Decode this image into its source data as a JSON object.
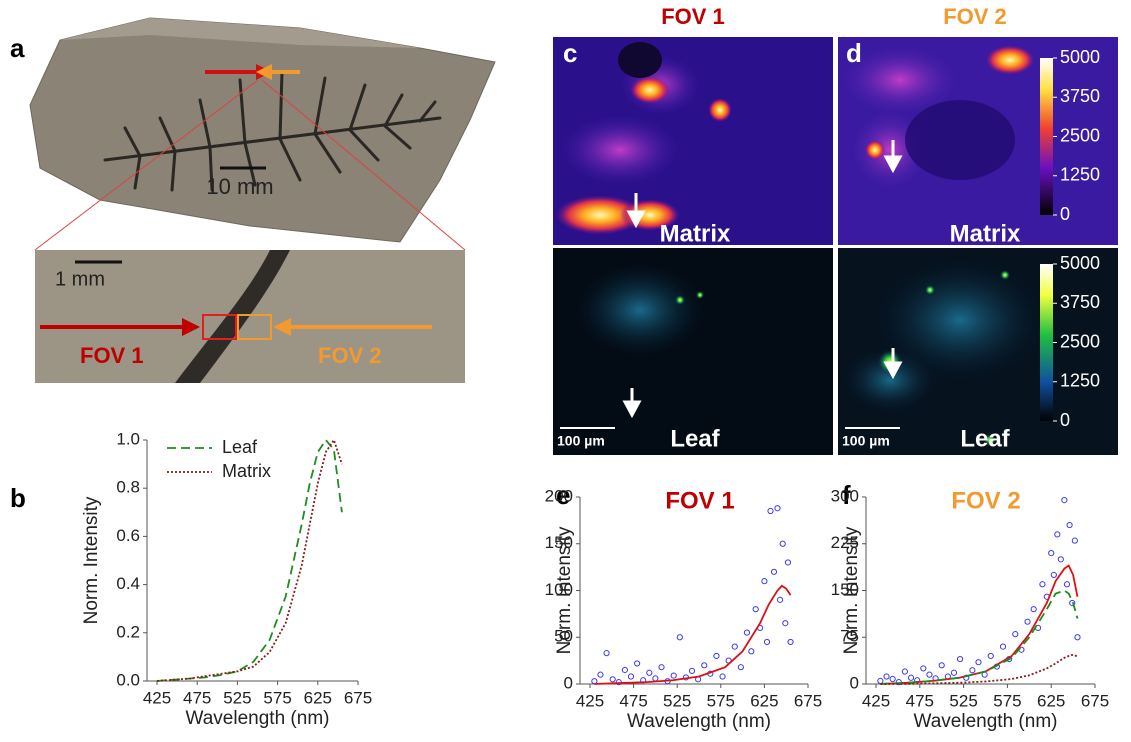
{
  "figure": {
    "panel_labels": [
      "a",
      "b",
      "c",
      "d",
      "e",
      "f"
    ]
  },
  "photo": {
    "scale_main": "10 mm",
    "scale_inset": "1 mm",
    "fov1": "FOV 1",
    "fov2": "FOV 2"
  },
  "maps": {
    "titles": [
      "FOV 1",
      "FOV 2"
    ],
    "row_labels": [
      "Matrix",
      "Leaf"
    ],
    "scale_bar": "100 µm",
    "colorbars": [
      {
        "ticks": [
          0,
          1250,
          2500,
          3750,
          5000
        ]
      },
      {
        "ticks": [
          0,
          1250,
          2500,
          3750,
          5000
        ]
      }
    ]
  },
  "chart_data": [
    {
      "type": "line",
      "xlabel": "Wavelength (nm)",
      "ylabel": "Norm. Intensity",
      "x": [
        425,
        445,
        465,
        485,
        505,
        525,
        545,
        565,
        585,
        605,
        615,
        625,
        635,
        645,
        655
      ],
      "xlim": [
        425,
        675
      ],
      "xticks": [
        425,
        475,
        525,
        575,
        625,
        675
      ],
      "ylim": [
        0,
        1
      ],
      "yticks": [
        {
          "value": 0,
          "label": "0.0"
        },
        0.2,
        0.4,
        0.6,
        0.8,
        {
          "value": 1,
          "label": "1.0"
        }
      ],
      "legend": "upper left",
      "series": [
        {
          "name": "Leaf",
          "color": "#1e8c1e",
          "dash": "dashed",
          "values": [
            0,
            0.005,
            0.01,
            0.015,
            0.025,
            0.04,
            0.08,
            0.17,
            0.35,
            0.65,
            0.82,
            0.95,
            1.0,
            0.96,
            0.7
          ]
        },
        {
          "name": "Matrix",
          "color": "#8b1a1a",
          "dash": "dotted",
          "values": [
            0,
            0.005,
            0.01,
            0.02,
            0.03,
            0.04,
            0.06,
            0.12,
            0.24,
            0.48,
            0.65,
            0.82,
            0.95,
            1.0,
            0.9
          ]
        }
      ]
    },
    {
      "type": "scatter",
      "title": "FOV 1",
      "title_color": "#c00000",
      "xlabel": "Wavelength (nm)",
      "ylabel": "Norm. Intensity",
      "xlim": [
        425,
        675
      ],
      "xticks": [
        425,
        475,
        525,
        575,
        625,
        675
      ],
      "ylim": [
        0,
        200
      ],
      "yticks": [
        0,
        50,
        100,
        150,
        200
      ],
      "series": [
        {
          "mode": "markers",
          "color": "#3b3bf0",
          "x": [
            430,
            437,
            444,
            451,
            458,
            465,
            472,
            479,
            486,
            493,
            500,
            507,
            514,
            521,
            528,
            535,
            542,
            549,
            556,
            563,
            570,
            577,
            584,
            591,
            598,
            605,
            610,
            615,
            620,
            625,
            628,
            632,
            636,
            640,
            643,
            646,
            649,
            652,
            655
          ],
          "values": [
            3,
            10,
            33,
            5,
            2,
            15,
            8,
            22,
            4,
            12,
            6,
            18,
            3,
            9,
            50,
            7,
            14,
            5,
            20,
            11,
            30,
            8,
            25,
            40,
            18,
            55,
            35,
            80,
            60,
            110,
            45,
            185,
            120,
            188,
            90,
            150,
            65,
            130,
            45
          ]
        },
        {
          "mode": "lines",
          "color": "#e01010",
          "dash": "solid",
          "x": [
            430,
            460,
            490,
            520,
            550,
            580,
            600,
            620,
            630,
            640,
            645,
            650,
            655
          ],
          "values": [
            0,
            1,
            2,
            4,
            8,
            18,
            35,
            65,
            85,
            100,
            105,
            102,
            95
          ]
        }
      ]
    },
    {
      "type": "scatter",
      "title": "FOV 2",
      "title_color": "#f39a2e",
      "xlabel": "Wavelength (nm)",
      "ylabel": "Norm. Intensity",
      "xlim": [
        425,
        675
      ],
      "xticks": [
        425,
        475,
        525,
        575,
        625,
        675
      ],
      "ylim": [
        0,
        300
      ],
      "yticks": [
        0,
        75,
        150,
        225,
        300
      ],
      "series": [
        {
          "mode": "markers",
          "color": "#3b3bf0",
          "x": [
            430,
            437,
            444,
            451,
            458,
            465,
            472,
            479,
            486,
            493,
            500,
            507,
            514,
            521,
            528,
            535,
            542,
            549,
            556,
            563,
            570,
            577,
            584,
            591,
            598,
            605,
            610,
            615,
            620,
            625,
            628,
            632,
            636,
            640,
            643,
            646,
            649,
            652,
            655
          ],
          "values": [
            5,
            12,
            8,
            3,
            20,
            10,
            6,
            25,
            15,
            9,
            30,
            12,
            18,
            40,
            10,
            22,
            35,
            15,
            45,
            28,
            60,
            40,
            80,
            55,
            100,
            120,
            90,
            160,
            140,
            210,
            175,
            240,
            200,
            295,
            160,
            255,
            130,
            230,
            75
          ]
        },
        {
          "mode": "lines",
          "color": "#e01010",
          "dash": "solid",
          "x": [
            430,
            460,
            490,
            520,
            550,
            580,
            600,
            620,
            630,
            640,
            645,
            650,
            655
          ],
          "values": [
            0,
            2,
            5,
            10,
            20,
            45,
            80,
            130,
            165,
            185,
            190,
            175,
            140
          ]
        },
        {
          "mode": "lines",
          "color": "#1e8c1e",
          "dash": "dashed",
          "x": [
            430,
            460,
            490,
            520,
            550,
            580,
            600,
            620,
            630,
            640,
            645,
            650,
            655
          ],
          "values": [
            0,
            2,
            5,
            10,
            20,
            42,
            75,
            120,
            145,
            150,
            145,
            130,
            105
          ]
        },
        {
          "mode": "lines",
          "color": "#8b1a1a",
          "dash": "dotted",
          "x": [
            430,
            460,
            490,
            520,
            550,
            580,
            600,
            620,
            630,
            640,
            645,
            650,
            655
          ],
          "values": [
            0,
            0,
            1,
            2,
            4,
            8,
            14,
            25,
            33,
            42,
            45,
            47,
            44
          ]
        }
      ]
    }
  ]
}
